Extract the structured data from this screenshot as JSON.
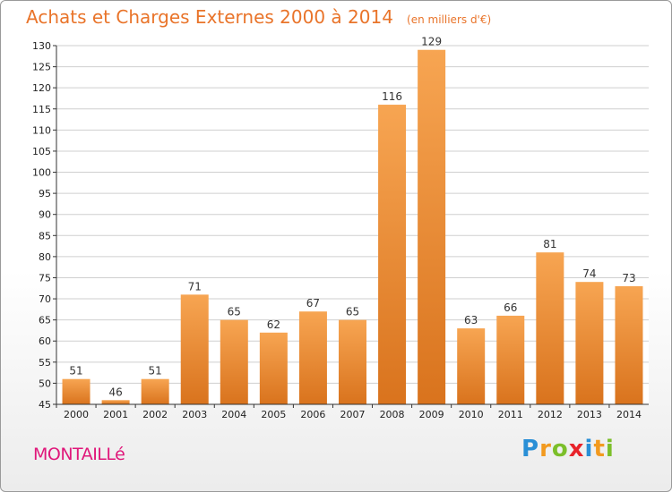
{
  "title": "Achats et Charges Externes 2000 à 2014",
  "unit_note": "(en milliers d'€)",
  "commune": "MONTAILLé",
  "logo_letters": [
    {
      "char": "P",
      "color": "#2a8fd6"
    },
    {
      "char": "r",
      "color": "#f29a1f"
    },
    {
      "char": "o",
      "color": "#7cbf2a"
    },
    {
      "char": "x",
      "color": "#e8232a"
    },
    {
      "char": "i",
      "color": "#2a8fd6"
    },
    {
      "char": "t",
      "color": "#f29a1f"
    },
    {
      "char": "i",
      "color": "#7cbf2a"
    }
  ],
  "colors": {
    "title": "#e9742a",
    "commune": "#e0177a",
    "bar_light": "#f7a552",
    "bar_dark": "#d9731d",
    "grid": "#cfcfcf",
    "axis": "#333333"
  },
  "chart_data": {
    "type": "bar",
    "title": "Achats et Charges Externes 2000 à 2014",
    "subtitle": "(en milliers d'€)",
    "xlabel": "",
    "ylabel": "",
    "categories": [
      "2000",
      "2001",
      "2002",
      "2003",
      "2004",
      "2005",
      "2006",
      "2007",
      "2008",
      "2009",
      "2010",
      "2011",
      "2012",
      "2013",
      "2014"
    ],
    "values": [
      51,
      46,
      51,
      71,
      65,
      62,
      67,
      65,
      116,
      129,
      63,
      66,
      81,
      74,
      73
    ],
    "ylim": [
      45,
      130
    ],
    "yticks": [
      45,
      50,
      55,
      60,
      65,
      70,
      75,
      80,
      85,
      90,
      95,
      100,
      105,
      110,
      115,
      120,
      125,
      130
    ],
    "grid": "horizontal",
    "data_labels": true,
    "legend": "none"
  }
}
